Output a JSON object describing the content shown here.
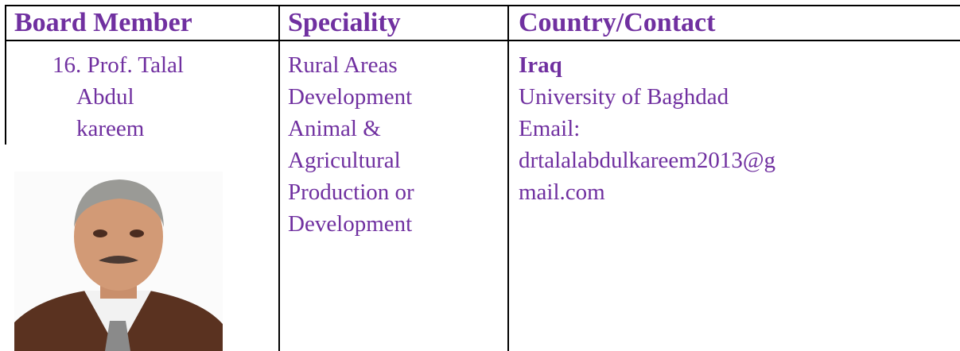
{
  "header": {
    "columns": [
      "Board Member",
      "Speciality",
      "Country/Contact"
    ]
  },
  "row": {
    "member_lines": [
      "16. Prof.  Talal",
      "Abdul",
      "kareem"
    ],
    "speciality_lines": [
      "Rural Areas",
      "Development",
      "Animal &",
      "Agricultural",
      "Production or",
      "Development"
    ],
    "country": "Iraq",
    "contact_lines": [
      "University of Baghdad",
      "Email:",
      "drtalalabdulkareem2013@g",
      "mail.com"
    ]
  }
}
